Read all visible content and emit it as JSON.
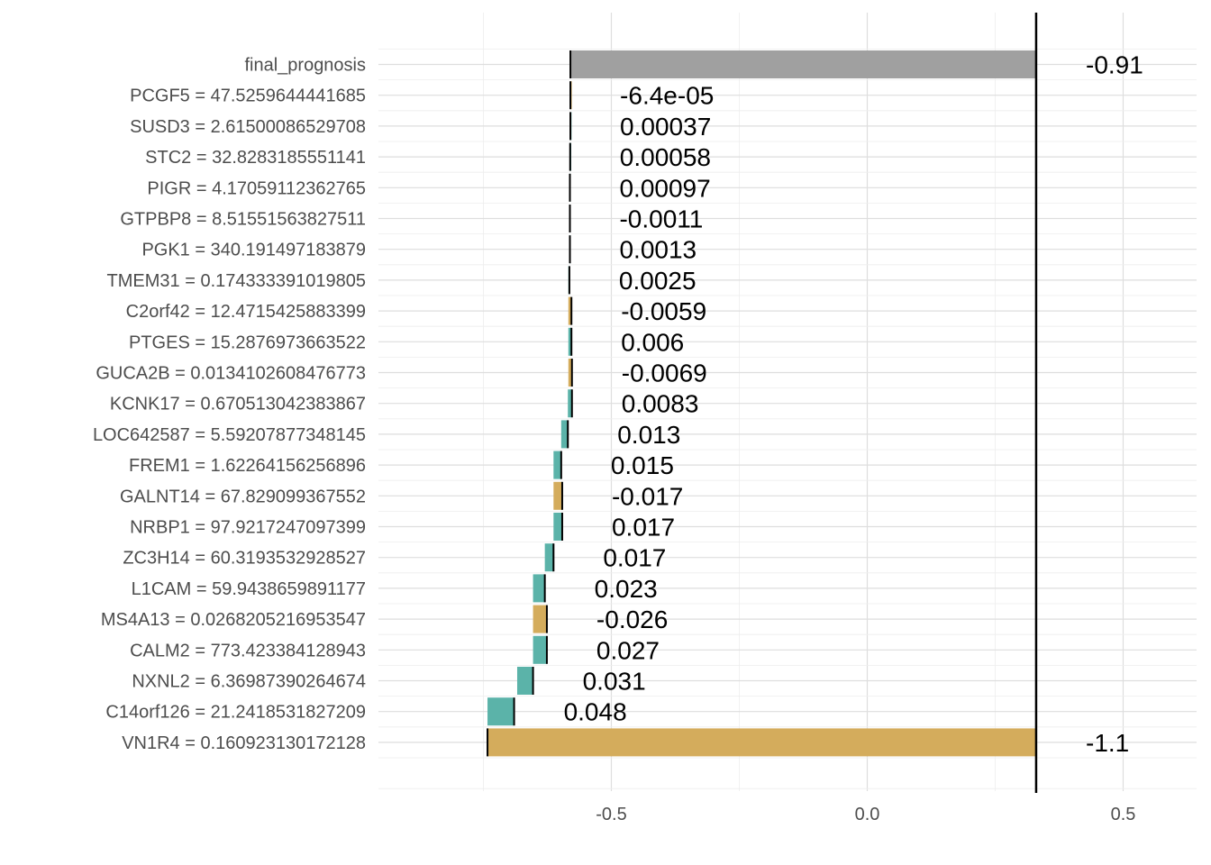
{
  "chart_data": {
    "type": "bar",
    "subtype": "waterfall-breakdown",
    "title": "",
    "xlabel": "",
    "ylabel": "",
    "xlim": [
      -0.9,
      0.65
    ],
    "x_ticks": [
      -0.5,
      0.0,
      0.5
    ],
    "x_tick_labels": [
      "-0.5",
      "0.0",
      "0.5"
    ],
    "grid": true,
    "legend": "none",
    "reference_line": {
      "x": 0.33
    },
    "colors": {
      "positive": "#5BB3A9",
      "negative": "#D4AC5C",
      "total": "#A0A0A0",
      "grid_major": "#DEDEDE",
      "grid_minor": "#EEEEEE",
      "tick_text": "#4D4D4D",
      "connector": "#000000"
    },
    "rows": [
      {
        "label": "final_prognosis",
        "start": 0.33,
        "end": -0.58,
        "value_label": "-0.91",
        "kind": "total"
      },
      {
        "label": "PCGF5 = 47.5259644441685",
        "start": -0.58,
        "end": -0.58,
        "value_label": "-6.4e-05",
        "kind": "negative"
      },
      {
        "label": "SUSD3 = 2.61500086529708",
        "start": -0.5805,
        "end": -0.58,
        "value_label": "0.00037",
        "kind": "positive"
      },
      {
        "label": "STC2 = 32.8283185551141",
        "start": -0.581,
        "end": -0.5805,
        "value_label": "0.00058",
        "kind": "positive"
      },
      {
        "label": "PIGR = 4.17059112362765",
        "start": -0.582,
        "end": -0.581,
        "value_label": "0.00097",
        "kind": "positive"
      },
      {
        "label": "GTPBP8 = 8.51551563827511",
        "start": -0.582,
        "end": -0.581,
        "value_label": "-0.0011",
        "kind": "negative"
      },
      {
        "label": "PGK1 = 340.191497183879",
        "start": -0.582,
        "end": -0.581,
        "value_label": "0.0013",
        "kind": "positive"
      },
      {
        "label": "TMEM31 = 0.174333391019805",
        "start": -0.584,
        "end": -0.582,
        "value_label": "0.0025",
        "kind": "positive"
      },
      {
        "label": "C2orf42 = 12.4715425883399",
        "start": -0.584,
        "end": -0.578,
        "value_label": "-0.0059",
        "kind": "negative"
      },
      {
        "label": "PTGES = 15.2876973663522",
        "start": -0.584,
        "end": -0.578,
        "value_label": "0.006",
        "kind": "positive"
      },
      {
        "label": "GUCA2B = 0.0134102608476773",
        "start": -0.584,
        "end": -0.577,
        "value_label": "-0.0069",
        "kind": "negative"
      },
      {
        "label": "KCNK17 = 0.670513042383867",
        "start": -0.585,
        "end": -0.577,
        "value_label": "0.0083",
        "kind": "positive"
      },
      {
        "label": "LOC642587 = 5.59207877348145",
        "start": -0.598,
        "end": -0.585,
        "value_label": "0.013",
        "kind": "positive"
      },
      {
        "label": "FREM1 = 1.62264156256896",
        "start": -0.613,
        "end": -0.598,
        "value_label": "0.015",
        "kind": "positive"
      },
      {
        "label": "GALNT14 = 67.829099367552",
        "start": -0.613,
        "end": -0.596,
        "value_label": "-0.017",
        "kind": "negative"
      },
      {
        "label": "NRBP1 = 97.9217247097399",
        "start": -0.613,
        "end": -0.596,
        "value_label": "0.017",
        "kind": "positive"
      },
      {
        "label": "ZC3H14 = 60.3193532928527",
        "start": -0.63,
        "end": -0.613,
        "value_label": "0.017",
        "kind": "positive"
      },
      {
        "label": "L1CAM = 59.9438659891177",
        "start": -0.653,
        "end": -0.63,
        "value_label": "0.023",
        "kind": "positive"
      },
      {
        "label": "MS4A13 = 0.0268205216953547",
        "start": -0.653,
        "end": -0.626,
        "value_label": "-0.026",
        "kind": "negative"
      },
      {
        "label": "CALM2 = 773.423384128943",
        "start": -0.653,
        "end": -0.626,
        "value_label": "0.027",
        "kind": "positive"
      },
      {
        "label": "NXNL2 = 6.36987390264674",
        "start": -0.684,
        "end": -0.653,
        "value_label": "0.031",
        "kind": "positive"
      },
      {
        "label": "C14orf126 = 21.2418531827209",
        "start": -0.742,
        "end": -0.69,
        "value_label": "0.048",
        "kind": "positive"
      },
      {
        "label": "VN1R4 = 0.160923130172128",
        "start": 0.33,
        "end": -0.742,
        "value_label": "-1.1",
        "kind": "negative"
      }
    ]
  }
}
